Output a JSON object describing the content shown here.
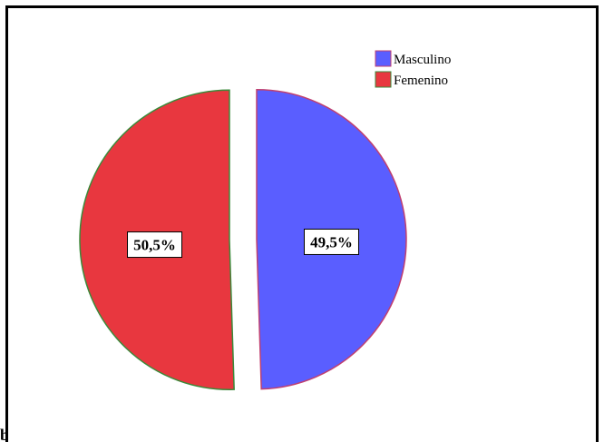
{
  "chart_data": {
    "type": "pie",
    "exploded": true,
    "legend_position": "top-right",
    "slices": [
      {
        "label": "Masculino",
        "value": 49.5,
        "data_label": "49,5%",
        "color": "#5a5eff",
        "edge_color": "#c04070"
      },
      {
        "label": "Femenino",
        "value": 50.5,
        "data_label": "50,5%",
        "color": "#e8373f",
        "edge_color": "#3a8a3a"
      }
    ]
  }
}
